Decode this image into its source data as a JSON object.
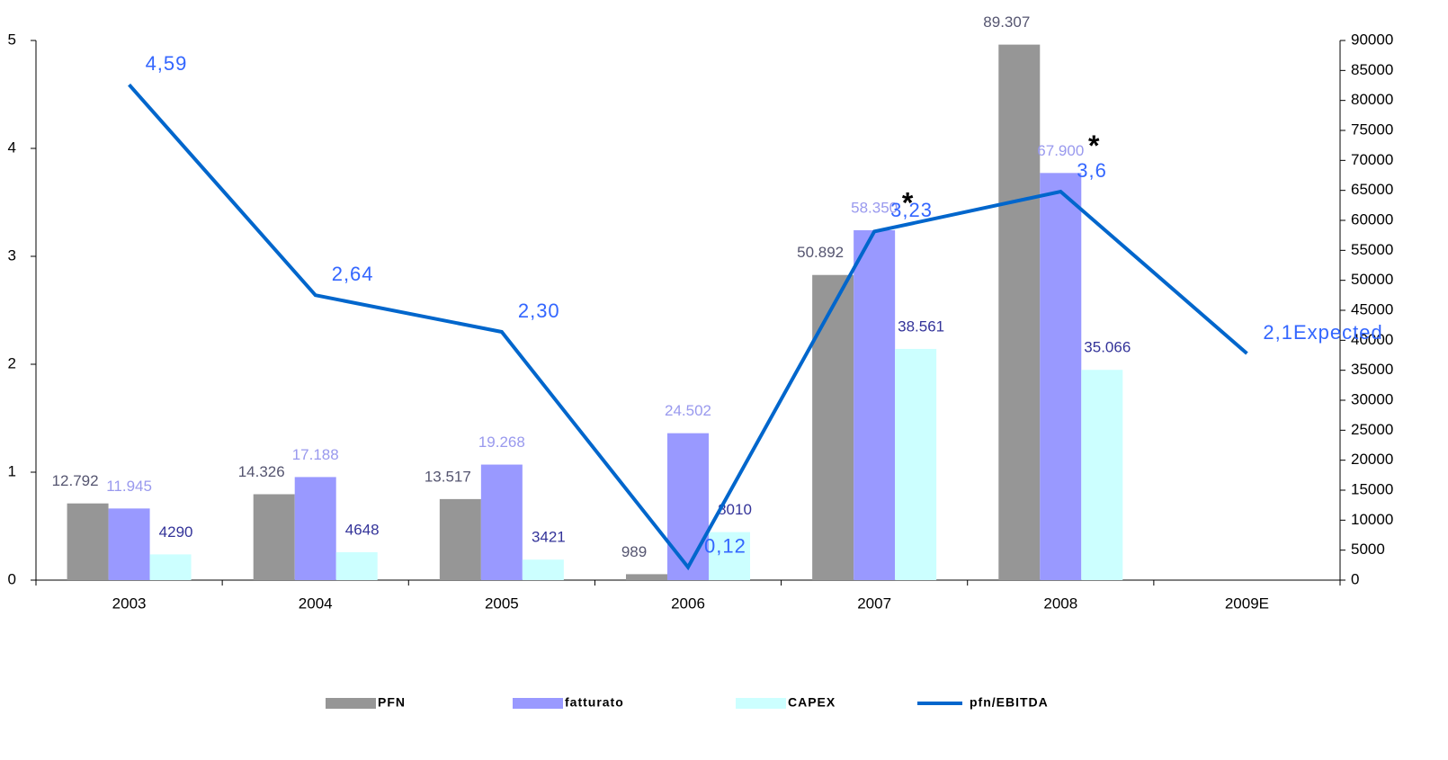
{
  "chart_data": {
    "type": "bar",
    "categories": [
      "2003",
      "2004",
      "2005",
      "2006",
      "2007",
      "2008",
      "2009E"
    ],
    "ylim": [
      0,
      5
    ],
    "yticks": [
      0,
      1,
      2,
      3,
      4,
      5
    ],
    "y2lim": [
      0,
      90000
    ],
    "y2ticks": [
      0,
      5000,
      10000,
      15000,
      20000,
      25000,
      30000,
      35000,
      40000,
      45000,
      50000,
      55000,
      60000,
      65000,
      70000,
      75000,
      80000,
      85000,
      90000
    ],
    "grid": false,
    "legend": "bottom",
    "series": [
      {
        "name": "PFN",
        "type": "bar",
        "axis": "y2",
        "color": "#969696",
        "label_color": "#555570",
        "values": [
          12792,
          14326,
          13517,
          989,
          50892,
          89307,
          null
        ],
        "value_labels": [
          "12.792",
          "14.326",
          "13.517",
          "989",
          "50.892",
          "89.307",
          null
        ]
      },
      {
        "name": "fatturato",
        "type": "bar",
        "axis": "y2",
        "color": "#9999ff",
        "label_color": "#9999ee",
        "values": [
          11945,
          17188,
          19268,
          24502,
          58350,
          67900,
          null
        ],
        "value_labels": [
          "11.945",
          "17.188",
          "19.268",
          "24.502",
          "58.350",
          "67.900",
          null
        ]
      },
      {
        "name": "CAPEX",
        "type": "bar",
        "axis": "y2",
        "color": "#ccffff",
        "label_color": "#333399",
        "values": [
          4290,
          4648,
          3421,
          8010,
          38561,
          35066,
          null
        ],
        "value_labels": [
          "4290",
          "4648",
          "3421",
          "8010",
          "38.561",
          "35.066",
          null
        ]
      },
      {
        "name": "pfn/EBITDA",
        "type": "line",
        "axis": "y",
        "color": "#0066cc",
        "label_color": "#3366ff",
        "values": [
          4.59,
          2.64,
          2.3,
          0.12,
          3.23,
          3.6,
          2.1
        ],
        "value_labels": [
          "4,59",
          "2,64",
          "2,30",
          "0,12",
          "3,23",
          "3,6",
          "2,1Expected"
        ]
      }
    ],
    "annotations": [
      "*",
      "*"
    ]
  }
}
